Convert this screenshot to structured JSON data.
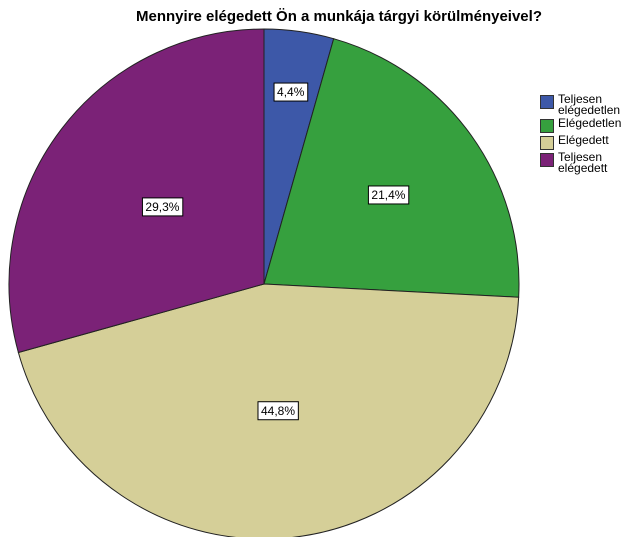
{
  "chart_data": {
    "type": "pie",
    "title": "Mennyire elégedett Ön a munkája tárgyi körülményeivel?",
    "categories": [
      "Teljesen elégedetlen",
      "Elégedetlen",
      "Elégedett",
      "Teljesen elégedett"
    ],
    "values": [
      4.4,
      21.4,
      44.8,
      29.3
    ],
    "value_labels": [
      "4,4%",
      "21,4%",
      "44,8%",
      "29,3%"
    ],
    "colors": [
      "#3d58a8",
      "#36a03e",
      "#d5cf98",
      "#7b2277"
    ],
    "legend": "right"
  }
}
